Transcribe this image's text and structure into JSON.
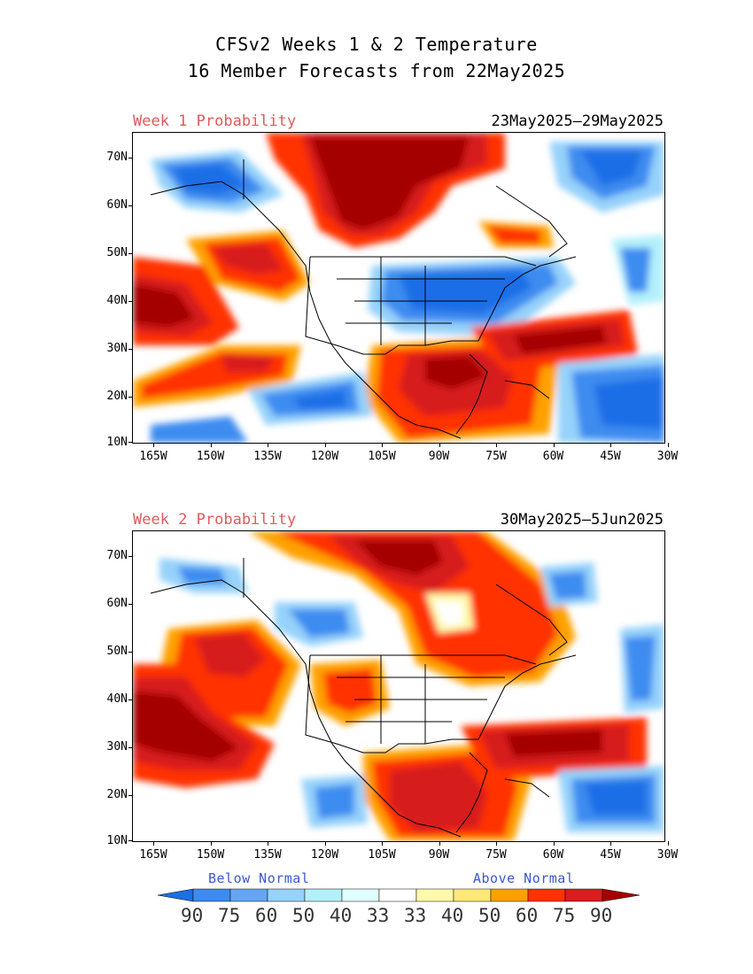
{
  "title_line1": "CFSv2 Weeks 1 & 2 Temperature",
  "title_line2": "16 Member Forecasts from 22May2025",
  "panels": [
    {
      "label": "Week 1 Probability",
      "dates": "23May2025—29May2025"
    },
    {
      "label": "Week 2 Probability",
      "dates": "30May2025—5Jun2025"
    }
  ],
  "lat_ticks": [
    "70N",
    "60N",
    "50N",
    "40N",
    "30N",
    "20N",
    "10N"
  ],
  "lon_ticks": [
    "165W",
    "150W",
    "135W",
    "120W",
    "105W",
    "90W",
    "75W",
    "60W",
    "45W",
    "30W"
  ],
  "legend": {
    "below_label": "Below Normal",
    "above_label": "Above Normal",
    "values": [
      "90",
      "75",
      "60",
      "50",
      "40",
      "33",
      "33",
      "40",
      "50",
      "60",
      "75",
      "90"
    ],
    "colors": [
      "#1e6ee6",
      "#3c8cf0",
      "#64a6f5",
      "#96d2fa",
      "#b4f0fa",
      "#e1ffff",
      "#ffffff",
      "#fffaaa",
      "#ffe878",
      "#ffa000",
      "#ff3200",
      "#d71e1e",
      "#a50000"
    ]
  },
  "colors": {
    "blue_dark": "#1e6ee6",
    "blue_mid": "#3c8cf0",
    "blue_light": "#96d2fa",
    "blue_pale": "#b4f0fa",
    "yellow_pale": "#fffaaa",
    "orange": "#ffa000",
    "red": "#ff3200",
    "red_dark": "#d71e1e",
    "maroon": "#a50000"
  }
}
